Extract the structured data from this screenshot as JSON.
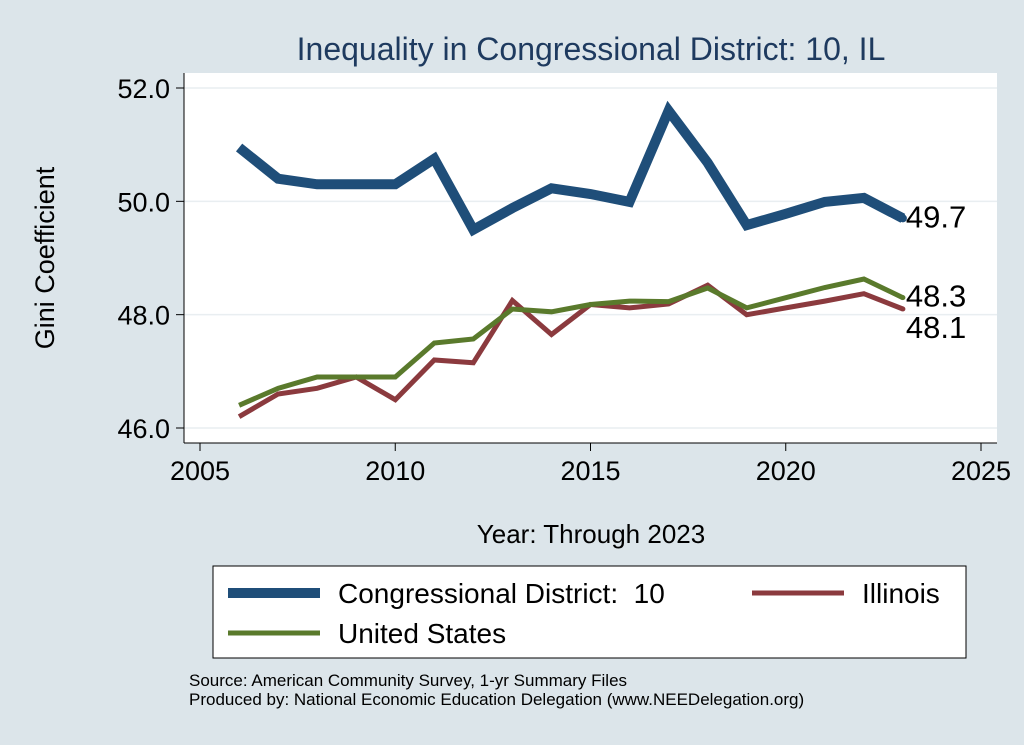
{
  "chart_data": {
    "type": "line",
    "title": "Inequality in Congressional District:  10, IL",
    "xlabel": "Year: Through 2023",
    "ylabel": "Gini Coefficient",
    "xlim": [
      2005,
      2025
    ],
    "ylim": [
      46.0,
      52.0
    ],
    "xticks": [
      2005,
      2010,
      2015,
      2020,
      2025
    ],
    "xtick_labels": [
      "2005",
      "2010",
      "2015",
      "2020",
      "2025"
    ],
    "yticks": [
      46.0,
      48.0,
      50.0,
      52.0
    ],
    "ytick_labels": [
      "46.0",
      "48.0",
      "50.0",
      "52.0"
    ],
    "grid": "horizontal",
    "legend_position": "bottom",
    "series": [
      {
        "name": "Congressional District:  10",
        "color": "#1f4e79",
        "x": [
          2006,
          2007,
          2008,
          2009,
          2010,
          2011,
          2012,
          2013,
          2014,
          2015,
          2016,
          2017,
          2018,
          2019,
          2020,
          2021,
          2022,
          2023
        ],
        "values": [
          50.95,
          50.4,
          50.3,
          50.3,
          50.3,
          50.75,
          49.5,
          49.88,
          50.23,
          50.13,
          49.99,
          51.6,
          50.68,
          49.58,
          49.78,
          49.99,
          50.06,
          49.7
        ],
        "end_label": "49.7"
      },
      {
        "name": "Illinois",
        "color": "#8b3a3e",
        "x": [
          2006,
          2007,
          2008,
          2009,
          2010,
          2011,
          2012,
          2013,
          2014,
          2015,
          2016,
          2017,
          2018,
          2019,
          2020,
          2021,
          2022,
          2023
        ],
        "values": [
          46.2,
          46.6,
          46.7,
          46.9,
          46.5,
          47.2,
          47.15,
          48.25,
          47.65,
          48.18,
          48.12,
          48.19,
          48.52,
          48.0,
          48.12,
          48.24,
          48.37,
          48.1
        ],
        "end_label": "48.1"
      },
      {
        "name": "United States",
        "color": "#5a7a2c",
        "x": [
          2006,
          2007,
          2008,
          2009,
          2010,
          2011,
          2012,
          2013,
          2014,
          2015,
          2016,
          2017,
          2018,
          2019,
          2020,
          2021,
          2022,
          2023
        ],
        "values": [
          46.4,
          46.7,
          46.9,
          46.9,
          46.9,
          47.5,
          47.57,
          48.1,
          48.05,
          48.18,
          48.24,
          48.23,
          48.47,
          48.12,
          48.3,
          48.48,
          48.63,
          48.3
        ],
        "end_label": "48.3"
      }
    ]
  },
  "source_text": "Source: American Community Survey, 1-yr Summary Files",
  "produced_text": "Produced by: National Economic Education Delegation (www.NEEDelegation.org)"
}
